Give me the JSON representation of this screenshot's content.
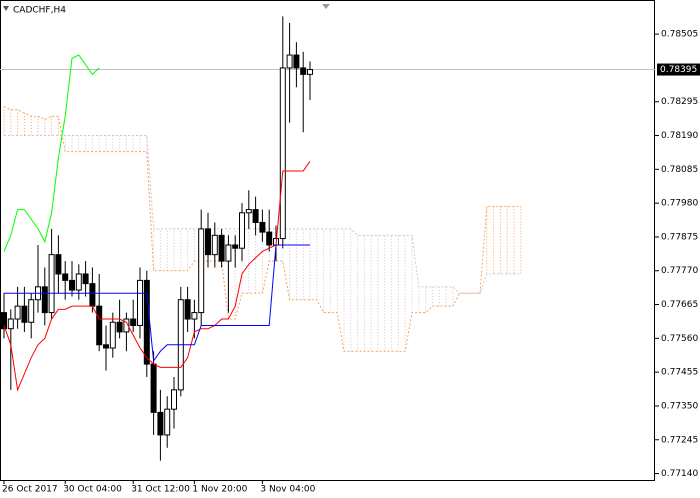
{
  "chart_data": {
    "type": "candlestick",
    "title": "CADCHF,H4",
    "categories": [
      "26 Oct 2017",
      null,
      null,
      null,
      null,
      null,
      null,
      null,
      null,
      "30 Oct 04:00",
      null,
      null,
      null,
      null,
      null,
      null,
      null,
      null,
      null,
      "31 Oct 12:00",
      null,
      null,
      null,
      null,
      null,
      null,
      null,
      null,
      "1 Nov 20:00",
      null,
      null,
      null,
      null,
      null,
      null,
      null,
      null,
      null,
      "3 Nov 04:00",
      null,
      null,
      null,
      null,
      null,
      null,
      null,
      null,
      null,
      null,
      null,
      null,
      null,
      null,
      null,
      null,
      null,
      null,
      null,
      null,
      null,
      null,
      null,
      null,
      null,
      null,
      null,
      null,
      null,
      null,
      null,
      null,
      null,
      null,
      null,
      null,
      null,
      null
    ],
    "open": [
      0.7764,
      0.7759,
      0.7762,
      0.7766,
      0.7761,
      0.7768,
      0.7772,
      0.7764,
      0.7782,
      0.7776,
      0.7774,
      0.7771,
      0.7776,
      0.7773,
      0.7766,
      0.7754,
      0.7753,
      0.7761,
      0.7758,
      0.7762,
      0.776,
      0.7774,
      0.7748,
      0.7733,
      0.7726,
      0.7734,
      0.774,
      0.7768,
      0.7762,
      0.7764,
      0.779,
      0.7782,
      0.7788,
      0.778,
      0.7785,
      0.7784,
      0.7795,
      0.7796,
      0.7792,
      0.7789,
      0.7785,
      0.7787,
      0.784,
      0.7844,
      0.784,
      0.7838,
      null,
      null,
      null,
      null,
      null,
      null,
      null,
      null,
      null,
      null,
      null,
      null,
      null,
      null,
      null,
      null,
      null,
      null,
      null,
      null,
      null,
      null,
      null,
      null,
      null,
      null,
      null,
      null,
      null,
      null,
      null
    ],
    "high": [
      0.777,
      0.7765,
      0.7772,
      0.7772,
      0.777,
      0.7785,
      0.7778,
      0.779,
      0.7788,
      0.778,
      0.778,
      0.7779,
      0.778,
      0.7778,
      0.7776,
      0.776,
      0.7764,
      0.7768,
      0.7764,
      0.7768,
      0.7778,
      0.7777,
      0.7752,
      0.774,
      0.7738,
      0.7744,
      0.7772,
      0.7772,
      0.7768,
      0.7796,
      0.7795,
      0.7792,
      0.779,
      0.7788,
      0.7788,
      0.7798,
      0.7802,
      0.78,
      0.7796,
      0.7796,
      0.7791,
      0.7856,
      0.7854,
      0.7848,
      0.7845,
      0.7842,
      null,
      null,
      null,
      null,
      null,
      null,
      null,
      null,
      null,
      null,
      null,
      null,
      null,
      null,
      null,
      null,
      null,
      null,
      null,
      null,
      null,
      null,
      null,
      null,
      null,
      null,
      null,
      null,
      null,
      null,
      null
    ],
    "low": [
      0.7756,
      0.774,
      0.7759,
      0.7758,
      0.7756,
      0.7764,
      0.776,
      0.7762,
      0.777,
      0.7768,
      0.7769,
      0.7768,
      0.7769,
      0.7764,
      0.7752,
      0.7746,
      0.775,
      0.7756,
      0.7752,
      0.7758,
      0.7756,
      0.7744,
      0.7726,
      0.7718,
      0.7722,
      0.7728,
      0.7738,
      0.7758,
      0.7756,
      0.776,
      0.7778,
      0.7778,
      0.7778,
      0.7764,
      0.7778,
      0.778,
      0.779,
      0.7788,
      0.7786,
      0.7783,
      0.778,
      0.7784,
      0.7823,
      0.7834,
      0.782,
      0.783,
      null,
      null,
      null,
      null,
      null,
      null,
      null,
      null,
      null,
      null,
      null,
      null,
      null,
      null,
      null,
      null,
      null,
      null,
      null,
      null,
      null,
      null,
      null,
      null,
      null,
      null,
      null,
      null,
      null,
      null,
      null
    ],
    "close": [
      0.7759,
      0.7762,
      0.7766,
      0.7761,
      0.7768,
      0.7772,
      0.7764,
      0.7782,
      0.7776,
      0.7774,
      0.7771,
      0.7776,
      0.7773,
      0.7766,
      0.7754,
      0.7753,
      0.7761,
      0.7758,
      0.7762,
      0.776,
      0.7774,
      0.7748,
      0.7733,
      0.7726,
      0.7734,
      0.774,
      0.7768,
      0.7762,
      0.7764,
      0.779,
      0.7782,
      0.7788,
      0.778,
      0.7785,
      0.7784,
      0.7795,
      0.7796,
      0.7792,
      0.7789,
      0.7785,
      0.7787,
      0.784,
      0.7844,
      0.784,
      0.7838,
      0.78395,
      null,
      null,
      null,
      null,
      null,
      null,
      null,
      null,
      null,
      null,
      null,
      null,
      null,
      null,
      null,
      null,
      null,
      null,
      null,
      null,
      null,
      null,
      null,
      null,
      null,
      null,
      null,
      null,
      null,
      null,
      null
    ],
    "up_color": "#ffffff",
    "down_color": "#000000",
    "series": [
      {
        "color": "#ff0000",
        "values": [
          0.776,
          0.7754,
          0.774,
          0.7745,
          0.775,
          0.7754,
          0.7756,
          0.7762,
          0.7765,
          0.7765,
          0.7766,
          0.7766,
          0.7766,
          0.7766,
          0.7762,
          0.7762,
          0.7762,
          0.7762,
          0.7761,
          0.7757,
          0.7753,
          0.775,
          0.7748,
          0.7747,
          0.7747,
          0.7747,
          0.7747,
          0.775,
          0.7758,
          0.7759,
          0.7759,
          0.776,
          0.7762,
          0.7762,
          0.7766,
          0.7776,
          0.7779,
          0.7781,
          0.7783,
          0.7784,
          0.7785,
          0.7808,
          0.7808,
          0.7808,
          0.7808,
          0.7811,
          null,
          null,
          null,
          null,
          null,
          null,
          null,
          null,
          null,
          null,
          null,
          null,
          null,
          null,
          null,
          null,
          null,
          null,
          null,
          null,
          null,
          null,
          null,
          null,
          null,
          null,
          null,
          null,
          null,
          null,
          null
        ]
      },
      {
        "color": "#0000ff",
        "values": [
          0.777,
          0.777,
          0.777,
          0.777,
          0.777,
          0.777,
          0.777,
          0.777,
          0.777,
          0.777,
          0.777,
          0.777,
          0.777,
          0.777,
          0.777,
          0.777,
          0.777,
          0.777,
          0.777,
          0.777,
          0.777,
          0.777,
          0.7749,
          0.7752,
          0.7754,
          0.7754,
          0.7754,
          0.7754,
          0.7754,
          0.776,
          0.776,
          0.776,
          0.776,
          0.776,
          0.776,
          0.776,
          0.776,
          0.776,
          0.776,
          0.776,
          0.7785,
          0.7785,
          0.7785,
          0.7785,
          0.7785,
          0.7785,
          null,
          null,
          null,
          null,
          null,
          null,
          null,
          null,
          null,
          null,
          null,
          null,
          null,
          null,
          null,
          null,
          null,
          null,
          null,
          null,
          null,
          null,
          null,
          null,
          null,
          null,
          null,
          null,
          null,
          null,
          null
        ]
      },
      {
        "color": "#00ff00",
        "values": [
          0.7783,
          0.7788,
          0.7796,
          0.7796,
          0.7793,
          0.779,
          0.7786,
          0.7795,
          0.7812,
          0.7825,
          0.7843,
          0.7844,
          0.7841,
          0.7838,
          0.784,
          null,
          null,
          null,
          null,
          null,
          null,
          null,
          null,
          null,
          null,
          null,
          null,
          null,
          null,
          null,
          null,
          null,
          null,
          null,
          null,
          null,
          null,
          null,
          null,
          null,
          null,
          null,
          null,
          null,
          null,
          null,
          null,
          null,
          null,
          null,
          null,
          null,
          null,
          null,
          null,
          null,
          null,
          null,
          null,
          null,
          null,
          null,
          null,
          null,
          null,
          null,
          null,
          null,
          null,
          null,
          null,
          null,
          null,
          null,
          null,
          null,
          null
        ]
      },
      {
        "color": "#f4a460",
        "values": [
          0.7828,
          0.7827,
          0.7827,
          0.7826,
          0.7825,
          0.7825,
          0.7824,
          0.7825,
          0.7825,
          0.7814,
          0.7814,
          0.7814,
          0.7814,
          0.7814,
          0.7814,
          0.7814,
          0.7814,
          0.7814,
          0.7814,
          0.7814,
          0.7814,
          0.7814,
          0.7777,
          0.7777,
          0.7777,
          0.7777,
          0.7777,
          0.7777,
          0.778,
          0.778,
          0.778,
          0.778,
          0.778,
          0.7762,
          0.7762,
          0.777,
          0.777,
          0.777,
          0.777,
          0.778,
          0.778,
          0.778,
          0.7768,
          0.7768,
          0.7768,
          0.7768,
          0.7768,
          0.7764,
          0.7764,
          0.7764,
          0.7752,
          0.7752,
          0.7752,
          0.7752,
          0.7752,
          0.7752,
          0.7752,
          0.7752,
          0.7752,
          0.7752,
          0.7764,
          0.7764,
          0.7764,
          0.7766,
          0.7766,
          0.7766,
          0.7766,
          0.777,
          0.777,
          0.777,
          0.777,
          0.7797,
          0.7797,
          0.7797,
          0.7797,
          0.7797,
          0.7797
        ]
      },
      {
        "color": "#d8bfd8",
        "values": [
          0.7819,
          0.7819,
          0.7819,
          0.7819,
          0.7819,
          0.7819,
          0.7819,
          0.7819,
          0.7819,
          0.7819,
          0.7819,
          0.7819,
          0.7819,
          0.7819,
          0.7819,
          0.7819,
          0.7819,
          0.7819,
          0.7819,
          0.7819,
          0.7819,
          0.7819,
          0.779,
          0.779,
          0.779,
          0.779,
          0.779,
          0.779,
          0.779,
          0.779,
          0.779,
          0.779,
          0.779,
          0.779,
          0.779,
          0.779,
          0.779,
          0.779,
          0.779,
          0.779,
          0.779,
          0.779,
          0.779,
          0.779,
          0.779,
          0.779,
          0.779,
          0.779,
          0.779,
          0.779,
          0.779,
          0.779,
          0.7788,
          0.7788,
          0.7788,
          0.7788,
          0.7788,
          0.7788,
          0.7788,
          0.7788,
          0.7788,
          0.7772,
          0.7772,
          0.7772,
          0.7772,
          0.7772,
          0.7772,
          0.777,
          0.777,
          0.777,
          0.777,
          0.7776,
          0.7776,
          0.7776,
          0.7776,
          0.7776,
          0.7776
        ]
      }
    ],
    "current_price": 0.78395,
    "ylim": [
      0.7712,
      0.78611
    ],
    "yticks": [
      0.78505,
      {
        "value": 0.7819,
        "label": "0.78190"
      },
      0.78295,
      0.78085,
      {
        "value": 0.7798,
        "label": "0.77980"
      },
      0.77875,
      {
        "value": 0.7777,
        "label": "0.77770"
      },
      0.77665,
      {
        "value": 0.7756,
        "label": "0.77560"
      },
      0.77455,
      {
        "value": 0.7735,
        "label": "0.77350"
      },
      0.77245,
      {
        "value": 0.7714,
        "label": "0.77140"
      }
    ]
  }
}
